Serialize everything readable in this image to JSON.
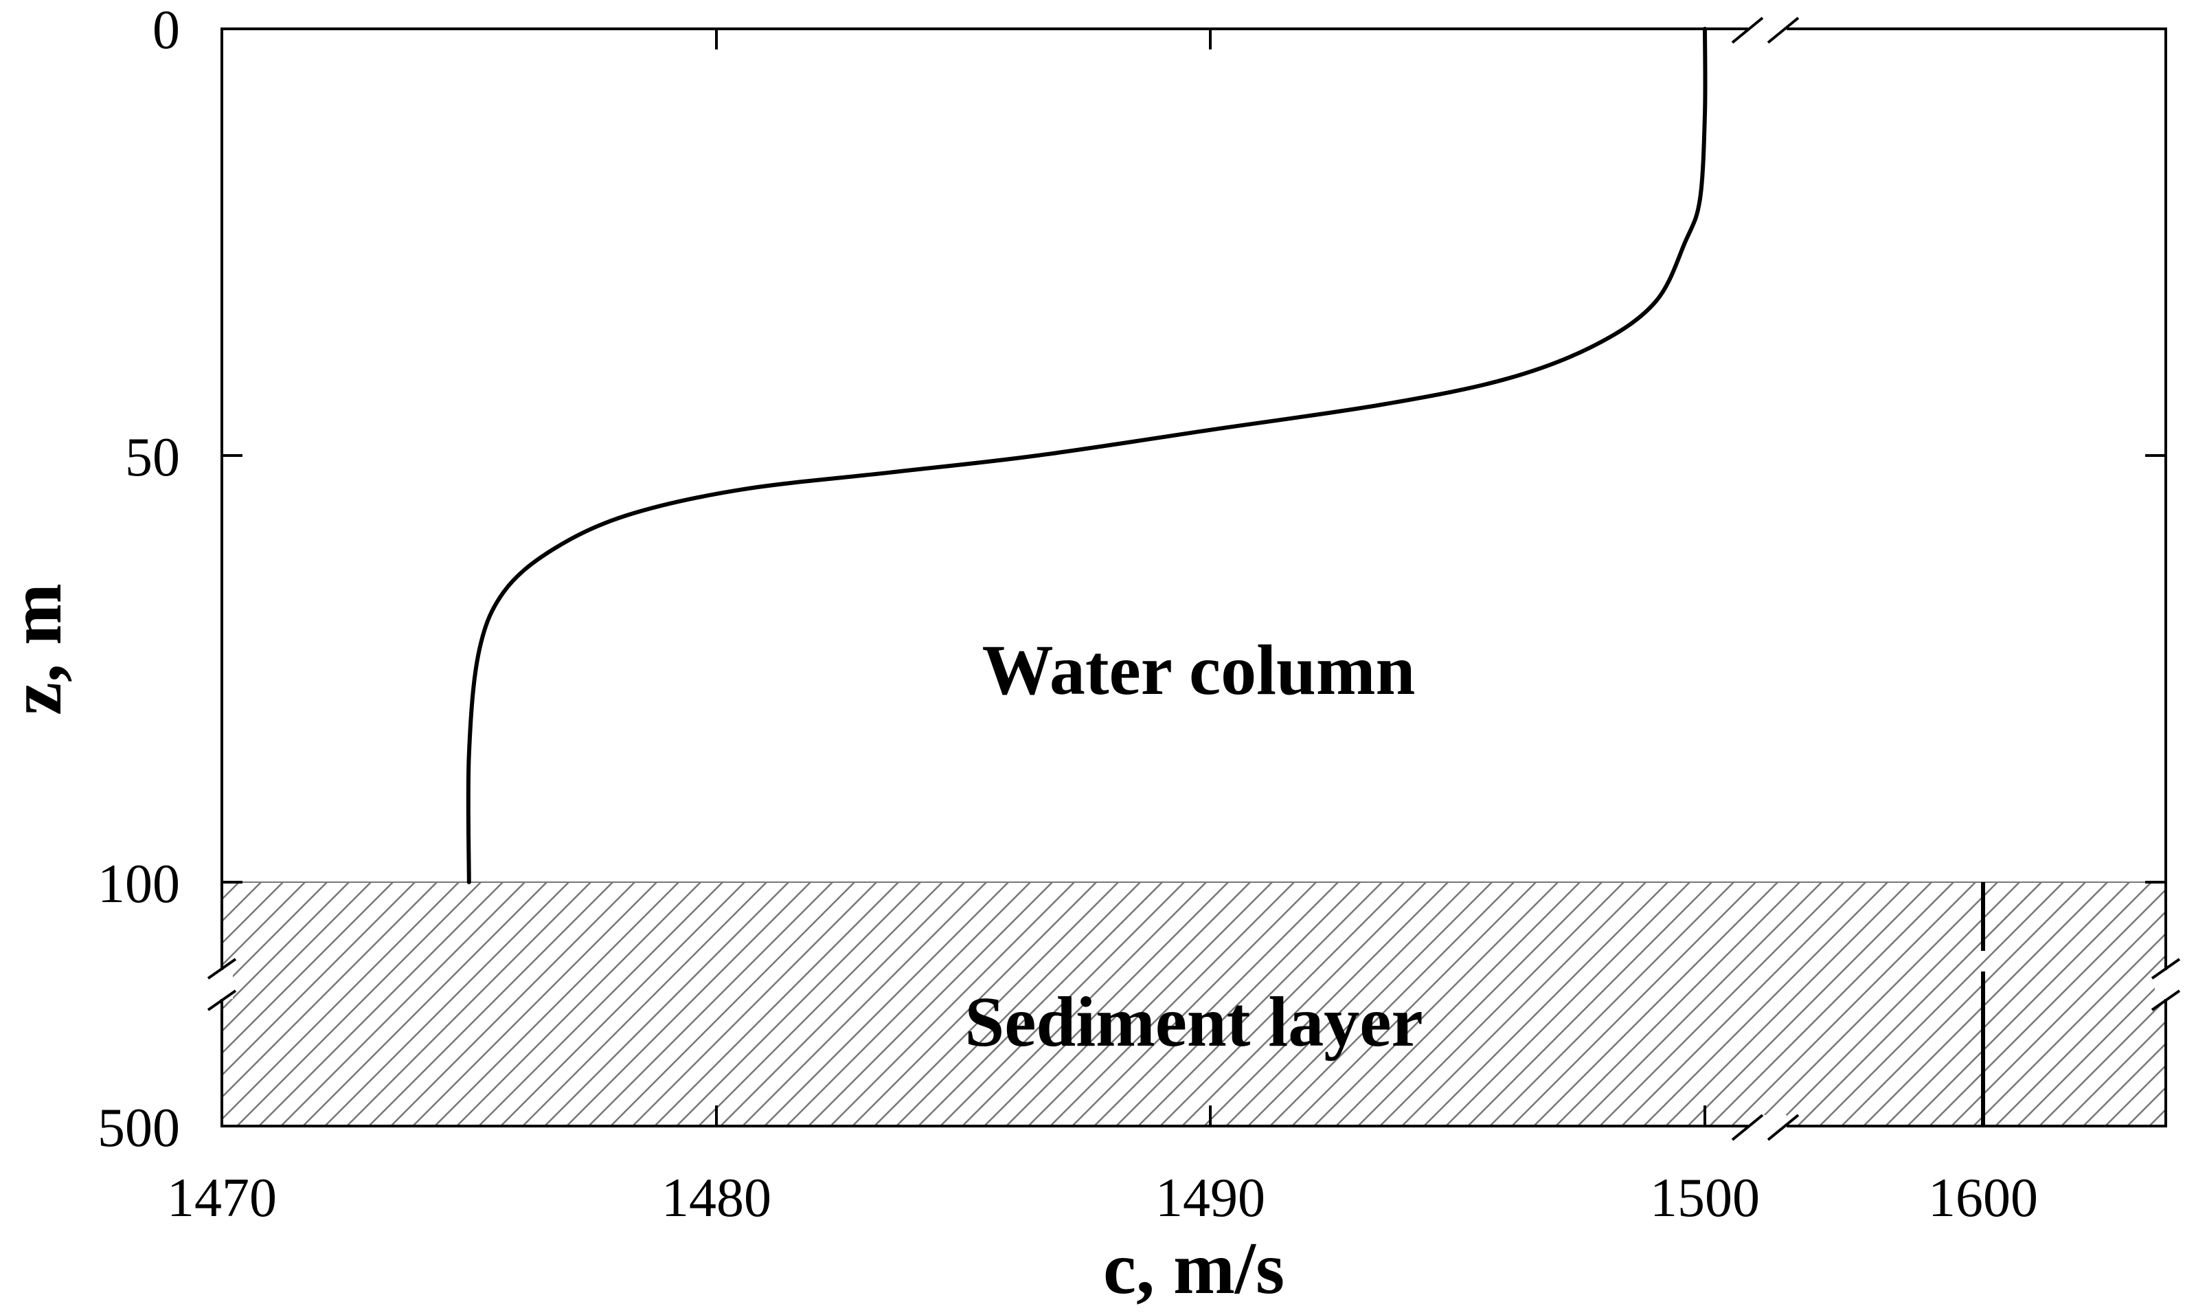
{
  "chart_data": {
    "type": "line",
    "xlabel": "c, m/s",
    "ylabel": "z, m",
    "x_ticks": [
      "1470",
      "1480",
      "1490",
      "1500",
      "1600"
    ],
    "y_ticks": [
      "0",
      "50",
      "100",
      "500"
    ],
    "x_axis_break": "between 1500 and 1600",
    "y_axis_break": "between 100 and 500",
    "y_axis_inverted": true,
    "grid": false,
    "series": [
      {
        "region": "water column",
        "x": [
          1500.0,
          1500.0,
          1499.9,
          1499.6,
          1499.0,
          1497.8,
          1496.0,
          1493.5,
          1490.0,
          1486.5,
          1483.5,
          1480.5,
          1478.2,
          1476.7,
          1475.7,
          1475.2,
          1475.0,
          1475.0
        ],
        "y": [
          0,
          10,
          20,
          25,
          32,
          37,
          41,
          44,
          47,
          50,
          52,
          54,
          57,
          61,
          66,
          73,
          85,
          100
        ]
      },
      {
        "region": "sediment layer",
        "x": [
          1600,
          1600
        ],
        "y": [
          100,
          500
        ]
      }
    ],
    "annotations": [
      "Water column",
      "Sediment layer"
    ]
  }
}
